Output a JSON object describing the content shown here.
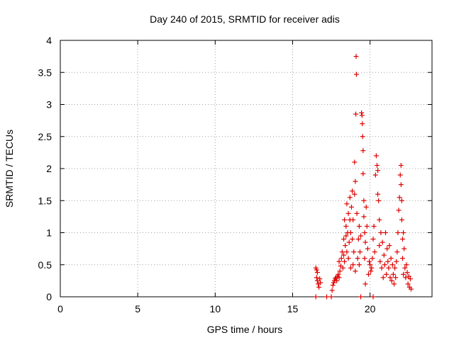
{
  "chart_data": {
    "type": "scatter",
    "title": "Day 240 of 2015, SRMTID for receiver adis",
    "xlabel": "GPS time / hours",
    "ylabel": "SRMTID / TECUs",
    "xlim": [
      0,
      24
    ],
    "ylim": [
      0,
      4
    ],
    "xticks": [
      "0",
      "5",
      "10",
      "15",
      "20"
    ],
    "yticks": [
      "0",
      "0.5",
      "1",
      "1.5",
      "2",
      "2.5",
      "3",
      "3.5",
      "4"
    ],
    "grid": true,
    "marker": "+",
    "marker_color": "#e00000",
    "series": [
      {
        "name": "SRMTID",
        "points": [
          [
            16.5,
            0.0
          ],
          [
            17.2,
            0.0
          ],
          [
            17.5,
            0.0
          ],
          [
            19.4,
            0.0
          ],
          [
            20.2,
            0.0
          ],
          [
            16.5,
            0.45
          ],
          [
            16.55,
            0.42
          ],
          [
            16.6,
            0.38
          ],
          [
            16.55,
            0.3
          ],
          [
            16.6,
            0.25
          ],
          [
            16.65,
            0.2
          ],
          [
            16.7,
            0.15
          ],
          [
            16.75,
            0.28
          ],
          [
            16.8,
            0.22
          ],
          [
            17.55,
            0.1
          ],
          [
            17.6,
            0.18
          ],
          [
            17.65,
            0.22
          ],
          [
            17.7,
            0.25
          ],
          [
            17.75,
            0.28
          ],
          [
            17.8,
            0.3
          ],
          [
            17.85,
            0.25
          ],
          [
            17.9,
            0.32
          ],
          [
            17.95,
            0.35
          ],
          [
            18.0,
            0.3
          ],
          [
            18.0,
            0.55
          ],
          [
            18.05,
            0.4
          ],
          [
            18.1,
            0.48
          ],
          [
            18.15,
            0.6
          ],
          [
            18.2,
            0.7
          ],
          [
            18.25,
            0.45
          ],
          [
            18.3,
            0.65
          ],
          [
            18.3,
            0.9
          ],
          [
            18.35,
            0.55
          ],
          [
            18.35,
            1.2
          ],
          [
            18.4,
            0.8
          ],
          [
            18.45,
            0.95
          ],
          [
            18.45,
            1.1
          ],
          [
            18.5,
            0.7
          ],
          [
            18.5,
            1.45
          ],
          [
            18.55,
            1.0
          ],
          [
            18.6,
            0.6
          ],
          [
            18.6,
            1.3
          ],
          [
            18.65,
            0.85
          ],
          [
            18.7,
            1.2
          ],
          [
            18.7,
            1.55
          ],
          [
            18.75,
            1.0
          ],
          [
            18.75,
            0.45
          ],
          [
            18.8,
            1.4
          ],
          [
            18.85,
            0.9
          ],
          [
            18.85,
            1.65
          ],
          [
            18.9,
            0.5
          ],
          [
            18.9,
            1.2
          ],
          [
            18.95,
            0.7
          ],
          [
            19.0,
            1.6
          ],
          [
            19.0,
            2.1
          ],
          [
            19.05,
            0.4
          ],
          [
            19.05,
            1.8
          ],
          [
            19.08,
            2.85
          ],
          [
            19.1,
            3.75
          ],
          [
            19.12,
            3.47
          ],
          [
            19.15,
            1.3
          ],
          [
            19.2,
            0.6
          ],
          [
            19.25,
            0.9
          ],
          [
            19.3,
            0.5
          ],
          [
            19.3,
            1.1
          ],
          [
            19.35,
            0.7
          ],
          [
            19.4,
            0.95
          ],
          [
            19.45,
            2.87
          ],
          [
            19.48,
            2.83
          ],
          [
            19.5,
            2.7
          ],
          [
            19.52,
            2.5
          ],
          [
            19.55,
            2.28
          ],
          [
            19.55,
            1.92
          ],
          [
            19.6,
            1.5
          ],
          [
            19.6,
            1.25
          ],
          [
            19.65,
            1.0
          ],
          [
            19.65,
            0.6
          ],
          [
            19.7,
            0.85
          ],
          [
            19.7,
            0.2
          ],
          [
            19.75,
            1.4
          ],
          [
            19.8,
            1.1
          ],
          [
            19.85,
            0.75
          ],
          [
            19.9,
            0.35
          ],
          [
            19.95,
            0.55
          ],
          [
            20.0,
            0.5
          ],
          [
            20.05,
            0.4
          ],
          [
            20.1,
            0.45
          ],
          [
            20.15,
            0.6
          ],
          [
            20.2,
            0.9
          ],
          [
            20.25,
            1.1
          ],
          [
            20.3,
            0.7
          ],
          [
            20.35,
            1.9
          ],
          [
            20.4,
            2.2
          ],
          [
            20.45,
            2.05
          ],
          [
            20.5,
            1.97
          ],
          [
            20.5,
            1.6
          ],
          [
            20.55,
            1.5
          ],
          [
            20.6,
            1.2
          ],
          [
            20.6,
            0.8
          ],
          [
            20.65,
            0.55
          ],
          [
            20.7,
            1.0
          ],
          [
            20.75,
            0.45
          ],
          [
            20.8,
            0.85
          ],
          [
            20.85,
            0.3
          ],
          [
            20.9,
            0.65
          ],
          [
            20.95,
            0.5
          ],
          [
            21.0,
            1.0
          ],
          [
            21.05,
            0.35
          ],
          [
            21.1,
            0.75
          ],
          [
            21.15,
            0.55
          ],
          [
            21.2,
            0.45
          ],
          [
            21.25,
            0.8
          ],
          [
            21.3,
            0.3
          ],
          [
            21.35,
            0.6
          ],
          [
            21.4,
            0.25
          ],
          [
            21.45,
            0.5
          ],
          [
            21.5,
            0.35
          ],
          [
            21.55,
            0.2
          ],
          [
            21.6,
            0.45
          ],
          [
            21.65,
            0.3
          ],
          [
            21.7,
            0.55
          ],
          [
            21.75,
            0.7
          ],
          [
            21.8,
            1.0
          ],
          [
            21.85,
            1.35
          ],
          [
            21.9,
            1.55
          ],
          [
            21.95,
            1.9
          ],
          [
            22.0,
            2.05
          ],
          [
            22.0,
            1.75
          ],
          [
            22.05,
            1.5
          ],
          [
            22.05,
            1.2
          ],
          [
            22.1,
            0.9
          ],
          [
            22.1,
            0.6
          ],
          [
            22.15,
            0.35
          ],
          [
            22.15,
            1.0
          ],
          [
            22.2,
            0.75
          ],
          [
            22.25,
            0.45
          ],
          [
            22.3,
            0.3
          ],
          [
            22.35,
            0.5
          ],
          [
            22.4,
            0.38
          ],
          [
            22.45,
            0.2
          ],
          [
            22.5,
            0.32
          ],
          [
            22.55,
            0.15
          ],
          [
            22.6,
            0.28
          ],
          [
            22.65,
            0.12
          ]
        ]
      }
    ]
  }
}
